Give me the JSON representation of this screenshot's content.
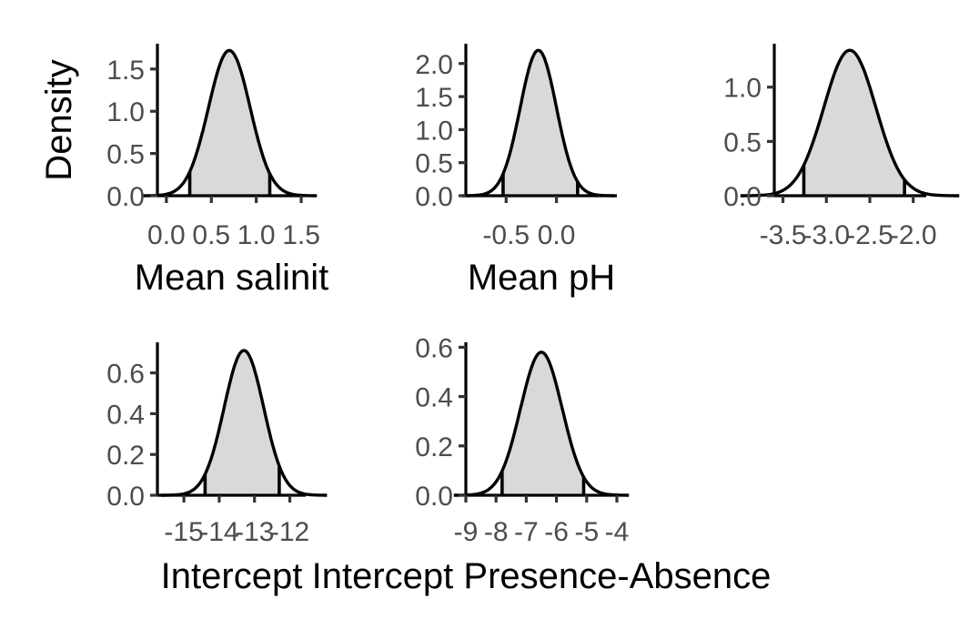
{
  "figure": {
    "ylabel": "Density"
  },
  "chart_data": [
    {
      "type": "area",
      "xlabel": "Mean salinit",
      "ylabel": "Density",
      "xlim": [
        -0.1,
        1.55
      ],
      "ylim": [
        0,
        1.8
      ],
      "x_ticks": [
        0.0,
        0.5,
        1.0,
        1.5
      ],
      "x_tick_labels": [
        "0.0",
        "0.5",
        "1.0",
        "1.5"
      ],
      "y_ticks": [
        0.0,
        0.5,
        1.0,
        1.5
      ],
      "y_tick_labels": [
        "0.0",
        "0.5",
        "1.0",
        "1.5"
      ],
      "distribution": {
        "mean": 0.7,
        "sd": 0.232,
        "ci_lower": 0.26,
        "ci_upper": 1.15,
        "peak_density": 1.72
      }
    },
    {
      "type": "area",
      "xlabel": "Mean pH",
      "ylabel": "",
      "xlim": [
        -0.9,
        0.6
      ],
      "ylim": [
        0,
        2.3
      ],
      "x_ticks": [
        -0.5,
        0.0
      ],
      "x_tick_labels": [
        "-0.5",
        "0.0"
      ],
      "y_ticks": [
        0.0,
        0.5,
        1.0,
        1.5,
        2.0
      ],
      "y_tick_labels": [
        "0.0",
        "0.5",
        "1.0",
        "1.5",
        "2.0"
      ],
      "distribution": {
        "mean": -0.18,
        "sd": 0.18,
        "ci_lower": -0.53,
        "ci_upper": 0.21,
        "peak_density": 2.2
      }
    },
    {
      "type": "area",
      "xlabel": "",
      "ylabel": "",
      "xlim": [
        -3.6,
        -1.85
      ],
      "ylim": [
        0,
        1.4
      ],
      "x_ticks": [
        -3.5,
        -3.0,
        -2.5,
        -2.0
      ],
      "x_tick_labels": [
        "-3.5",
        "-3.0",
        "-2.5",
        "-2.0"
      ],
      "y_ticks": [
        0.0,
        0.5,
        1.0
      ],
      "y_tick_labels": [
        "0.0",
        "0.5",
        "1.0"
      ],
      "distribution": {
        "mean": -2.73,
        "sd": 0.3,
        "ci_lower": -3.26,
        "ci_upper": -2.1,
        "peak_density": 1.34
      }
    },
    {
      "type": "area",
      "xlabel": "Intercept",
      "ylabel": "",
      "xlim": [
        -15.75,
        -11.55
      ],
      "ylim": [
        0,
        0.75
      ],
      "x_ticks": [
        -15,
        -14,
        -13,
        -12
      ],
      "x_tick_labels": [
        "-15",
        "-14",
        "-13",
        "-12"
      ],
      "y_ticks": [
        0.0,
        0.2,
        0.4,
        0.6
      ],
      "y_tick_labels": [
        "0.0",
        "0.2",
        "0.4",
        "0.6"
      ],
      "distribution": {
        "mean": -13.3,
        "sd": 0.56,
        "ci_lower": -14.4,
        "ci_upper": -12.3,
        "peak_density": 0.71
      }
    },
    {
      "type": "area",
      "xlabel": "Intercept Presence-Absence",
      "ylabel": "",
      "xlim": [
        -9.0,
        -4.0
      ],
      "ylim": [
        0,
        0.62
      ],
      "x_ticks": [
        -9,
        -8,
        -7,
        -6,
        -5,
        -4
      ],
      "x_tick_labels": [
        "-9",
        "-8",
        "-7",
        "-6",
        "-5",
        "-4"
      ],
      "y_ticks": [
        0.0,
        0.2,
        0.4,
        0.6
      ],
      "y_tick_labels": [
        "0.0",
        "0.2",
        "0.4",
        "0.6"
      ],
      "distribution": {
        "mean": -6.5,
        "sd": 0.69,
        "ci_lower": -7.8,
        "ci_upper": -5.1,
        "peak_density": 0.58
      }
    }
  ]
}
